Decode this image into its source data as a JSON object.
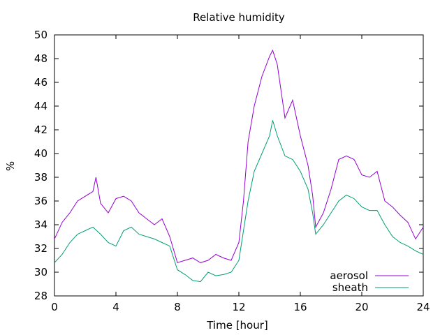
{
  "chart_data": {
    "type": "line",
    "title": "Relative humidity",
    "xlabel": "Time [hour]",
    "ylabel": "%",
    "xlim": [
      0,
      24
    ],
    "ylim": [
      28,
      50
    ],
    "x_ticks": [
      0,
      4,
      8,
      12,
      16,
      20,
      24
    ],
    "y_ticks": [
      28,
      30,
      32,
      34,
      36,
      38,
      40,
      42,
      44,
      46,
      48,
      50
    ],
    "x_tick_labels": [
      "0",
      "4",
      "8",
      "12",
      "16",
      "20",
      "24"
    ],
    "y_tick_labels": [
      "28",
      "30",
      "32",
      "34",
      "36",
      "38",
      "40",
      "42",
      "44",
      "46",
      "48",
      "50"
    ],
    "grid": false,
    "legend_position": "bottom-right",
    "series": [
      {
        "name": "aerosol",
        "color": "#9400d3",
        "x": [
          0,
          0.5,
          1,
          1.5,
          2,
          2.5,
          2.7,
          3,
          3.5,
          4,
          4.5,
          5,
          5.5,
          6,
          6.5,
          7,
          7.5,
          8,
          8.5,
          9,
          9.5,
          10,
          10.5,
          11,
          11.5,
          12,
          12.3,
          12.6,
          13,
          13.5,
          14,
          14.2,
          14.5,
          15,
          15.5,
          16,
          16.5,
          16.8,
          17,
          17.5,
          18,
          18.5,
          19,
          19.5,
          20,
          20.5,
          21,
          21.5,
          22,
          22.5,
          23,
          23.5,
          24
        ],
        "y": [
          32.8,
          34.2,
          35.0,
          36.0,
          36.4,
          36.8,
          38.0,
          35.8,
          35.0,
          36.2,
          36.4,
          36.0,
          35.0,
          34.5,
          34.0,
          34.5,
          33.0,
          30.8,
          31.0,
          31.2,
          30.8,
          31.0,
          31.5,
          31.2,
          31.0,
          32.5,
          36.0,
          41.0,
          44.0,
          46.5,
          48.2,
          48.7,
          47.5,
          43.0,
          44.5,
          41.5,
          39.0,
          36.5,
          33.8,
          35.0,
          37.0,
          39.5,
          39.8,
          39.5,
          38.2,
          38.0,
          38.5,
          36.0,
          35.5,
          34.8,
          34.2,
          32.8,
          33.8
        ]
      },
      {
        "name": "sheath",
        "color": "#009e73",
        "x": [
          0,
          0.5,
          1,
          1.5,
          2,
          2.5,
          3,
          3.5,
          4,
          4.5,
          5,
          5.5,
          6,
          6.5,
          7,
          7.5,
          8,
          8.5,
          9,
          9.5,
          10,
          10.5,
          11,
          11.5,
          12,
          12.3,
          12.6,
          13,
          13.5,
          14,
          14.2,
          14.5,
          15,
          15.5,
          16,
          16.5,
          16.8,
          17,
          17.5,
          18,
          18.5,
          19,
          19.5,
          20,
          20.5,
          21,
          21.5,
          22,
          22.5,
          23,
          23.5,
          24
        ],
        "y": [
          30.8,
          31.5,
          32.5,
          33.2,
          33.5,
          33.8,
          33.2,
          32.5,
          32.2,
          33.5,
          33.8,
          33.2,
          33.0,
          32.8,
          32.5,
          32.2,
          30.2,
          29.8,
          29.3,
          29.2,
          30.0,
          29.7,
          29.8,
          30.0,
          31.0,
          33.5,
          36.0,
          38.5,
          40.0,
          41.5,
          42.8,
          41.5,
          39.8,
          39.5,
          38.5,
          37.0,
          35.0,
          33.2,
          34.0,
          35.0,
          36.0,
          36.5,
          36.2,
          35.5,
          35.2,
          35.2,
          34.0,
          33.0,
          32.5,
          32.2,
          31.8,
          31.5
        ]
      }
    ]
  }
}
